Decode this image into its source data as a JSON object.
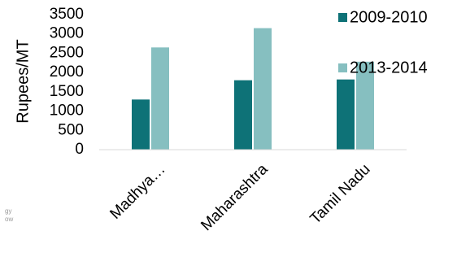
{
  "chart_data": {
    "type": "bar",
    "categories": [
      "Madhya…",
      "Maharashtra",
      "Tamil Nadu"
    ],
    "series": [
      {
        "name": "2009-2010",
        "values": [
          1300,
          1800,
          1820
        ],
        "color": "#0e7277"
      },
      {
        "name": "2013-2014",
        "values": [
          2650,
          3150,
          2280
        ],
        "color": "#86bfc0"
      }
    ],
    "ylabel": "Rupees/MT",
    "xlabel": "",
    "ylim": [
      0,
      3500
    ],
    "yticks": [
      0,
      500,
      1000,
      1500,
      2000,
      2500,
      3000,
      3500
    ],
    "grid": false,
    "legend_position": "right"
  },
  "background_fragment": [
    "gy",
    "ow"
  ]
}
